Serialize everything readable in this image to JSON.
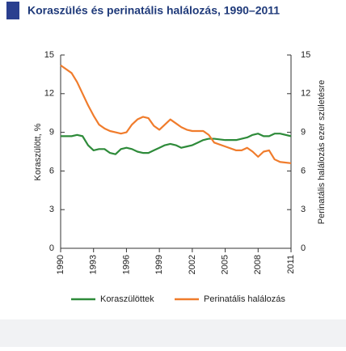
{
  "chart_data": {
    "type": "line",
    "title": "Koraszülés és perinatális halálozás, 1990–2011",
    "ylabel": "Koraszülött, %",
    "y2label": "Perinatális halálozás ezer születésre",
    "x": [
      1990,
      1991,
      1991.5,
      1992,
      1992.5,
      1993,
      1993.5,
      1994,
      1994.5,
      1995,
      1995.5,
      1996,
      1996.5,
      1997,
      1997.5,
      1998,
      1998.5,
      1999,
      1999.5,
      2000,
      2000.5,
      2001,
      2001.5,
      2002,
      2002.5,
      2003,
      2003.5,
      2004,
      2005,
      2006,
      2006.5,
      2007,
      2007.5,
      2008,
      2008.5,
      2009,
      2009.5,
      2010,
      2011
    ],
    "series": [
      {
        "name": "Koraszülöttek",
        "color": "#2e8b3a",
        "axis": "y",
        "values": [
          8.7,
          8.7,
          8.8,
          8.7,
          8.0,
          7.6,
          7.7,
          7.7,
          7.4,
          7.3,
          7.7,
          7.8,
          7.7,
          7.5,
          7.4,
          7.4,
          7.6,
          7.8,
          8.0,
          8.1,
          8.0,
          7.8,
          7.9,
          8.0,
          8.2,
          8.4,
          8.5,
          8.5,
          8.4,
          8.4,
          8.5,
          8.6,
          8.8,
          8.9,
          8.7,
          8.7,
          8.9,
          8.9,
          8.7
        ]
      },
      {
        "name": "Perinatális halálozás",
        "color": "#f07c2c",
        "axis": "y2",
        "values": [
          14.2,
          13.6,
          12.9,
          12.0,
          11.1,
          10.3,
          9.6,
          9.3,
          9.1,
          9.0,
          8.9,
          9.0,
          9.6,
          10.0,
          10.2,
          10.1,
          9.5,
          9.2,
          9.6,
          10.0,
          9.7,
          9.4,
          9.2,
          9.1,
          9.1,
          9.1,
          8.8,
          8.2,
          7.9,
          7.6,
          7.6,
          7.8,
          7.5,
          7.1,
          7.5,
          7.6,
          6.9,
          6.7,
          6.6
        ]
      }
    ],
    "xlim": [
      1990,
      2011
    ],
    "xticks": [
      1990,
      1993,
      1996,
      1999,
      2002,
      2005,
      2008,
      2011
    ],
    "ylim": [
      0,
      15
    ],
    "yticks": [
      0,
      3,
      6,
      9,
      12,
      15
    ],
    "y2lim": [
      0,
      15
    ],
    "y2ticks": [
      0,
      3,
      6,
      9,
      12,
      15
    ]
  }
}
